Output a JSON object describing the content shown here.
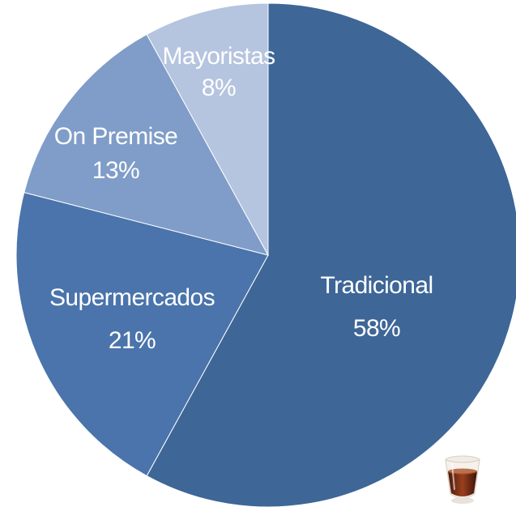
{
  "chart_data": {
    "type": "pie",
    "start_angle_deg": 0,
    "direction": "clockwise",
    "slices": [
      {
        "label": "Tradicional",
        "value": 58,
        "value_label": "58%",
        "color": "#3e6697"
      },
      {
        "label": "Supermercados",
        "value": 21,
        "value_label": "21%",
        "color": "#4a74ab"
      },
      {
        "label": "On Premise",
        "value": 13,
        "value_label": "13%",
        "color": "#7f9dc8"
      },
      {
        "label": "Mayoristas",
        "value": 8,
        "value_label": "8%",
        "color": "#b5c4df"
      }
    ]
  },
  "decoration": {
    "icon": "liquor-glass-icon"
  }
}
